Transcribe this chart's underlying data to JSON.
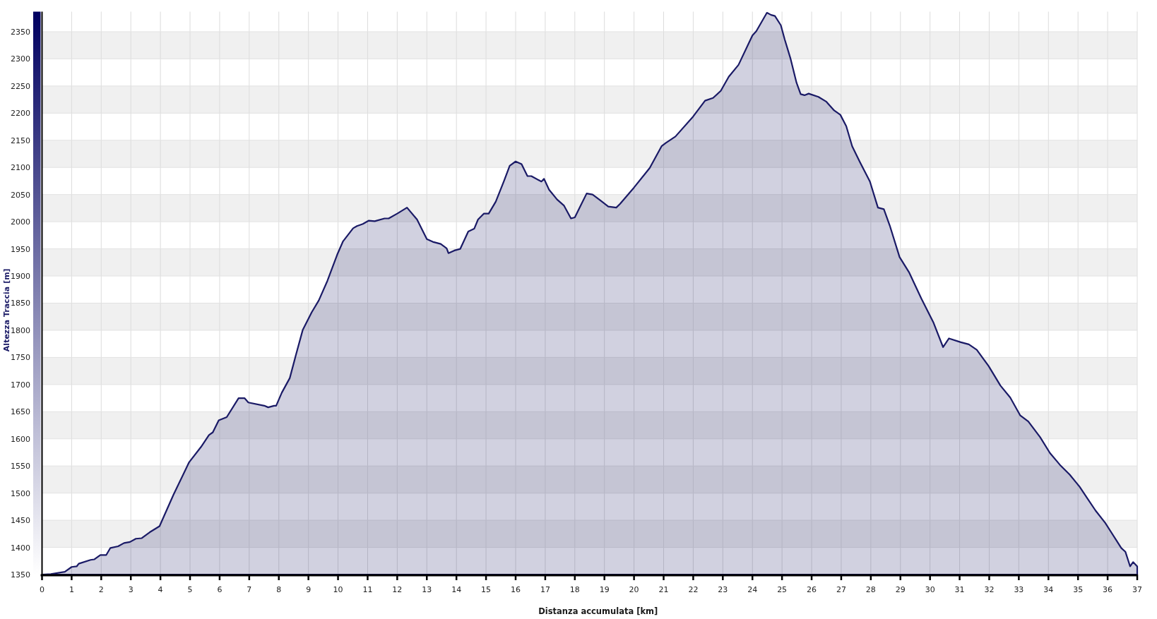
{
  "chart_data": {
    "type": "area",
    "xlabel": "Distanza accumulata [km]",
    "ylabel": "Altezza Traccia [m]",
    "xlim": [
      0,
      37
    ],
    "ylim": [
      1350,
      2387
    ],
    "xticks": [
      0,
      1,
      2,
      3,
      4,
      5,
      6,
      7,
      8,
      9,
      10,
      11,
      12,
      13,
      14,
      15,
      16,
      17,
      18,
      19,
      20,
      21,
      22,
      23,
      24,
      25,
      26,
      27,
      28,
      29,
      30,
      31,
      32,
      33,
      34,
      35,
      36,
      37
    ],
    "yticks": [
      1350,
      1400,
      1450,
      1500,
      1550,
      1600,
      1650,
      1700,
      1750,
      1800,
      1850,
      1900,
      1950,
      2000,
      2050,
      2100,
      2150,
      2200,
      2250,
      2300,
      2350
    ],
    "grid": true,
    "color": "#1a1a66",
    "x": [
      0,
      0.3,
      0.77,
      1.0,
      1.17,
      1.24,
      1.64,
      1.77,
      1.97,
      2.17,
      2.31,
      2.57,
      2.77,
      2.97,
      3.17,
      3.37,
      3.64,
      3.97,
      4.44,
      4.97,
      5.37,
      5.64,
      5.77,
      5.97,
      6.24,
      6.64,
      6.84,
      6.97,
      7.51,
      7.64,
      7.84,
      7.91,
      8.1,
      8.37,
      8.57,
      8.81,
      9.11,
      9.35,
      9.64,
      9.97,
      10.17,
      10.51,
      10.64,
      10.84,
      11.04,
      11.24,
      11.57,
      11.71,
      12.0,
      12.33,
      12.67,
      13.0,
      13.2,
      13.47,
      13.67,
      13.73,
      13.93,
      14.13,
      14.4,
      14.6,
      14.73,
      14.93,
      15.09,
      15.33,
      15.6,
      15.8,
      16.0,
      16.2,
      16.4,
      16.53,
      16.87,
      16.96,
      17.13,
      17.4,
      17.63,
      17.87,
      18.0,
      18.2,
      18.4,
      18.6,
      18.87,
      19.13,
      19.4,
      19.53,
      20.0,
      20.53,
      20.93,
      21.07,
      21.4,
      22.0,
      22.4,
      22.67,
      22.93,
      23.2,
      23.53,
      24.0,
      24.13,
      24.49,
      24.63,
      24.76,
      24.96,
      25.09,
      25.29,
      25.49,
      25.63,
      25.76,
      25.9,
      26.23,
      26.5,
      26.76,
      26.97,
      27.17,
      27.37,
      27.63,
      27.97,
      28.24,
      28.44,
      28.64,
      28.97,
      29.3,
      29.71,
      30.11,
      30.44,
      30.64,
      31.04,
      31.31,
      31.58,
      31.98,
      32.38,
      32.71,
      33.05,
      33.32,
      33.72,
      34.05,
      34.39,
      34.72,
      35.05,
      35.32,
      35.59,
      35.92,
      36.12,
      36.46,
      36.6,
      36.76,
      36.86,
      37.0
    ],
    "values": [
      1350,
      1351,
      1355,
      1364,
      1365,
      1370,
      1377,
      1378,
      1386,
      1386,
      1399,
      1402,
      1408,
      1410,
      1416,
      1417,
      1428,
      1439,
      1497,
      1557,
      1585,
      1607,
      1612,
      1634,
      1640,
      1675,
      1675,
      1667,
      1661,
      1658,
      1661,
      1661,
      1685,
      1712,
      1753,
      1801,
      1833,
      1855,
      1891,
      1939,
      1964,
      1988,
      1992,
      1996,
      2002,
      2001,
      2006,
      2006,
      2015,
      2026,
      2004,
      1968,
      1963,
      1959,
      1951,
      1942,
      1947,
      1950,
      1982,
      1987,
      2004,
      2015,
      2015,
      2037,
      2074,
      2103,
      2111,
      2106,
      2084,
      2084,
      2074,
      2079,
      2059,
      2041,
      2030,
      2006,
      2008,
      2030,
      2052,
      2050,
      2039,
      2028,
      2026,
      2033,
      2063,
      2099,
      2139,
      2145,
      2157,
      2194,
      2223,
      2228,
      2241,
      2267,
      2289,
      2343,
      2351,
      2385,
      2381,
      2379,
      2362,
      2336,
      2300,
      2256,
      2235,
      2233,
      2236,
      2230,
      2221,
      2205,
      2197,
      2176,
      2139,
      2110,
      2074,
      2026,
      2023,
      1993,
      1935,
      1906,
      1858,
      1815,
      1769,
      1785,
      1778,
      1774,
      1764,
      1734,
      1698,
      1676,
      1643,
      1632,
      1603,
      1574,
      1552,
      1534,
      1512,
      1490,
      1468,
      1445,
      1428,
      1399,
      1392,
      1365,
      1373,
      1365
    ]
  }
}
